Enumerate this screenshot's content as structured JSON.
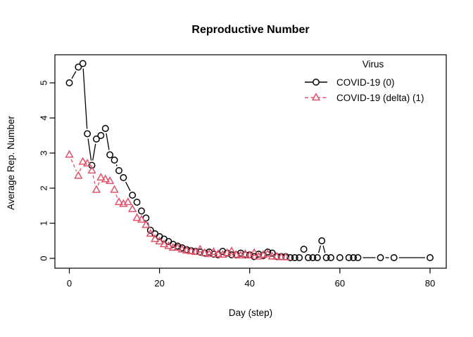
{
  "chart_data": {
    "type": "line",
    "title": "Reproductive Number",
    "xlabel": "Day (step)",
    "ylabel": "Average Rep. Number",
    "xticks": [
      0,
      20,
      40,
      60,
      80
    ],
    "yticks": [
      0,
      1,
      2,
      3,
      4,
      5
    ],
    "xlim": [
      -3,
      83.5
    ],
    "ylim": [
      -0.28,
      5.8
    ],
    "grid": false,
    "legend": {
      "title": "Virus",
      "position": "top-right",
      "entries": [
        {
          "label": "COVID-19 (0)",
          "color": "#000000",
          "marker": "circle",
          "linestyle": "solid"
        },
        {
          "label": "COVID-19 (delta) (1)",
          "color": "#DF536B",
          "marker": "triangle",
          "linestyle": "dashed"
        }
      ]
    },
    "series": [
      {
        "name": "COVID-19 (0)",
        "color": "#000000",
        "marker": "circle",
        "linestyle": "solid",
        "x": [
          0,
          2,
          3,
          4,
          5,
          6,
          7,
          8,
          9,
          10,
          11,
          12,
          14,
          15,
          16,
          17,
          18,
          19,
          20,
          21,
          22,
          23,
          24,
          25,
          26,
          27,
          28,
          29,
          30,
          31,
          32,
          33,
          34,
          35,
          36,
          37,
          38,
          39,
          40,
          41,
          42,
          43,
          44,
          45,
          46,
          47,
          48,
          49,
          50,
          51,
          52,
          53,
          54,
          55,
          56,
          57,
          58,
          60,
          62,
          63,
          64,
          69,
          72,
          80
        ],
        "y": [
          5.0,
          5.45,
          5.55,
          3.55,
          2.65,
          3.4,
          3.5,
          3.7,
          2.95,
          2.8,
          2.5,
          2.3,
          1.8,
          1.6,
          1.35,
          1.15,
          0.8,
          0.7,
          0.62,
          0.55,
          0.48,
          0.4,
          0.35,
          0.3,
          0.25,
          0.22,
          0.2,
          0.18,
          0.15,
          0.18,
          0.12,
          0.1,
          0.2,
          0.15,
          0.1,
          0.1,
          0.15,
          0.1,
          0.1,
          0.05,
          0.12,
          0.08,
          0.18,
          0.15,
          0.05,
          0.05,
          0.05,
          0.02,
          0.02,
          0.02,
          0.26,
          0.02,
          0.02,
          0.02,
          0.5,
          0.02,
          0.02,
          0.02,
          0.02,
          0.02,
          0.02,
          0.02,
          0.02,
          0.02
        ]
      },
      {
        "name": "COVID-19 (delta) (1)",
        "color": "#DF536B",
        "marker": "triangle",
        "linestyle": "dashed",
        "x": [
          0,
          2,
          3,
          4,
          5,
          6,
          7,
          8,
          9,
          10,
          11,
          12,
          13,
          14,
          15,
          16,
          17,
          18,
          19,
          20,
          21,
          22,
          23,
          24,
          25,
          26,
          27,
          28,
          29,
          30,
          31,
          32,
          33,
          34,
          35,
          36,
          37,
          38,
          39,
          40,
          41,
          42,
          43,
          44,
          45,
          46,
          47,
          48
        ],
        "y": [
          2.95,
          2.35,
          2.75,
          2.7,
          2.5,
          1.95,
          2.3,
          2.25,
          2.2,
          1.95,
          1.6,
          1.55,
          1.6,
          1.4,
          1.15,
          1.1,
          0.95,
          0.7,
          0.55,
          0.48,
          0.4,
          0.35,
          0.3,
          0.3,
          0.25,
          0.22,
          0.2,
          0.18,
          0.25,
          0.15,
          0.12,
          0.18,
          0.12,
          0.1,
          0.15,
          0.2,
          0.1,
          0.08,
          0.12,
          0.08,
          0.15,
          0.05,
          0.1,
          0.12,
          0.05,
          0.05,
          0.03,
          0.03
        ]
      }
    ]
  }
}
